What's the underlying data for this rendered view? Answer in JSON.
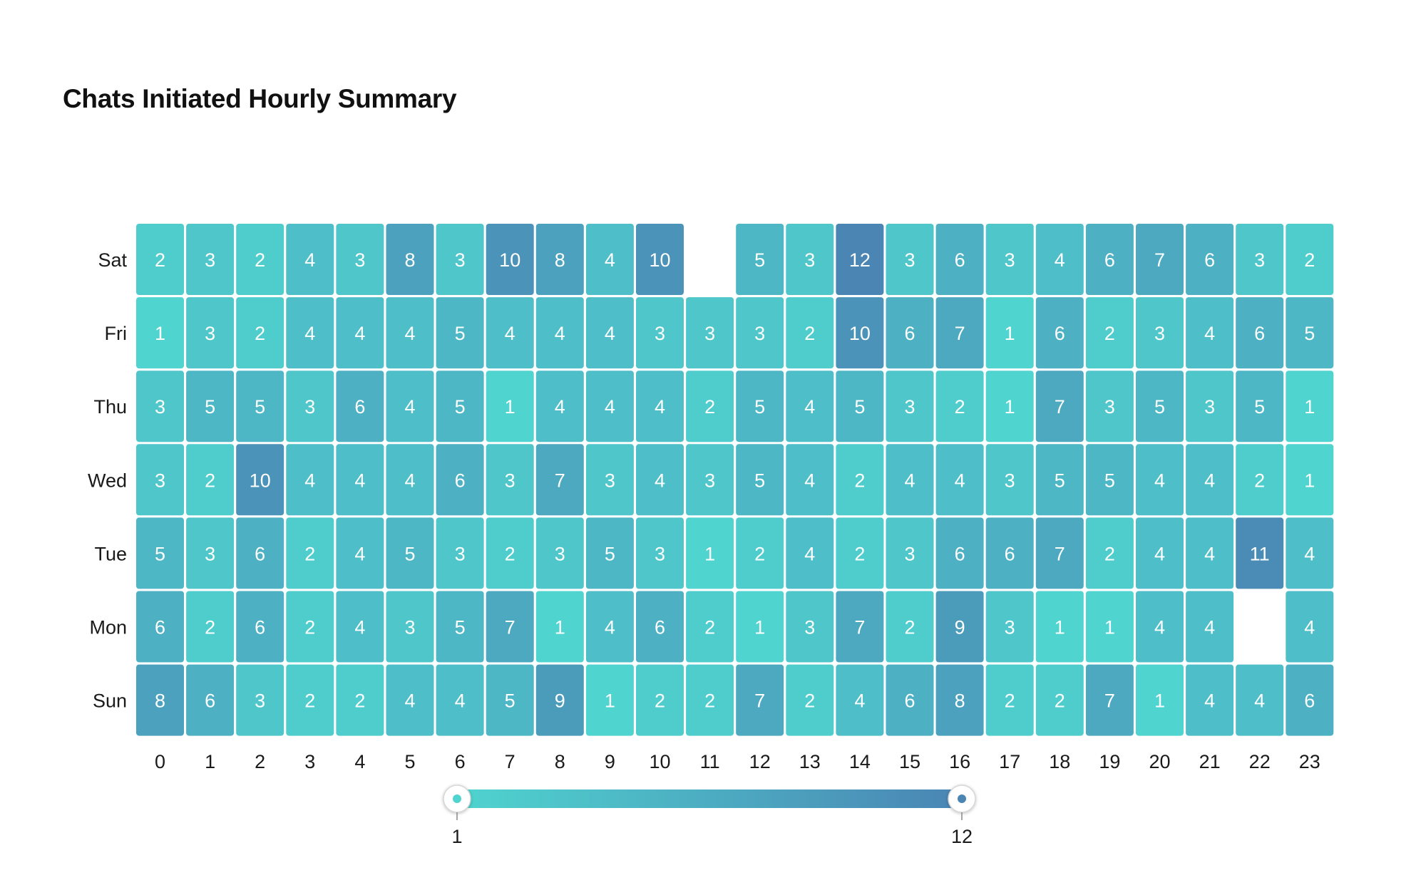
{
  "title": "Chats Initiated Hourly Summary",
  "chart_data": {
    "type": "heatmap",
    "title": "Chats Initiated Hourly Summary",
    "x": [
      "0",
      "1",
      "2",
      "3",
      "4",
      "5",
      "6",
      "7",
      "8",
      "9",
      "10",
      "11",
      "12",
      "13",
      "14",
      "15",
      "16",
      "17",
      "18",
      "19",
      "20",
      "21",
      "22",
      "23"
    ],
    "y": [
      "Sat",
      "Fri",
      "Thu",
      "Wed",
      "Tue",
      "Mon",
      "Sun"
    ],
    "values": [
      [
        2,
        3,
        2,
        4,
        3,
        8,
        3,
        10,
        8,
        4,
        10,
        null,
        5,
        3,
        12,
        3,
        6,
        3,
        4,
        6,
        7,
        6,
        3,
        2
      ],
      [
        1,
        3,
        2,
        4,
        4,
        4,
        5,
        4,
        4,
        4,
        3,
        3,
        3,
        2,
        10,
        6,
        7,
        1,
        6,
        2,
        3,
        4,
        6,
        5
      ],
      [
        3,
        5,
        5,
        3,
        6,
        4,
        5,
        1,
        4,
        4,
        4,
        2,
        5,
        4,
        5,
        3,
        2,
        1,
        7,
        3,
        5,
        3,
        5,
        1
      ],
      [
        3,
        2,
        10,
        4,
        4,
        4,
        6,
        3,
        7,
        3,
        4,
        3,
        5,
        4,
        2,
        4,
        4,
        3,
        5,
        5,
        4,
        4,
        2,
        1
      ],
      [
        5,
        3,
        6,
        2,
        4,
        5,
        3,
        2,
        3,
        5,
        3,
        1,
        2,
        4,
        2,
        3,
        6,
        6,
        7,
        2,
        4,
        4,
        11,
        4
      ],
      [
        6,
        2,
        6,
        2,
        4,
        3,
        5,
        7,
        1,
        4,
        6,
        2,
        1,
        3,
        7,
        2,
        9,
        3,
        1,
        1,
        4,
        4,
        null,
        4
      ],
      [
        8,
        6,
        3,
        2,
        2,
        4,
        4,
        5,
        9,
        1,
        2,
        2,
        7,
        2,
        4,
        6,
        8,
        2,
        2,
        7,
        1,
        4,
        4,
        6
      ]
    ],
    "color_scale": {
      "min": 1,
      "max": 12,
      "min_color": "#4fd4cf",
      "max_color": "#4a85b4"
    },
    "legend": {
      "position": "bottom",
      "min_label": "1",
      "max_label": "12"
    },
    "grid": false
  }
}
